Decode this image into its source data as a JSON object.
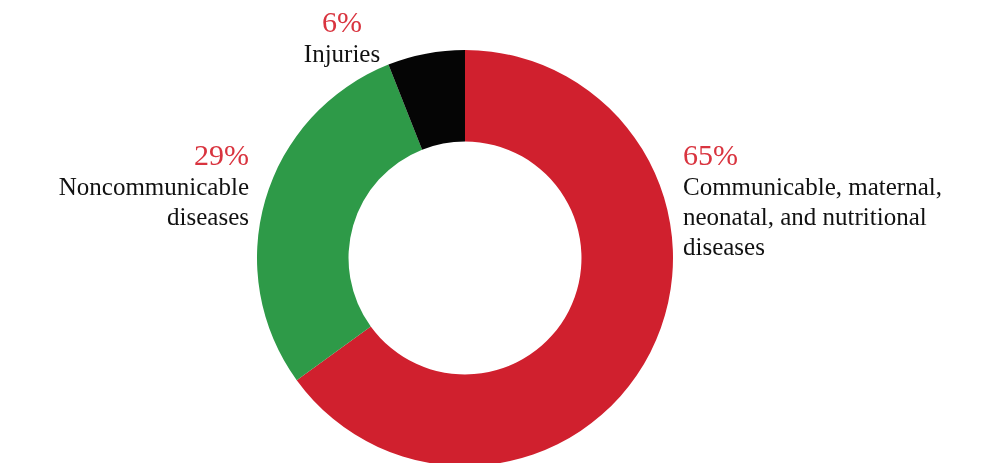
{
  "chart_data": {
    "type": "donut",
    "categories": [
      "Communicable, maternal, neonatal, and nutritional diseases",
      "Noncommunicable diseases",
      "Injuries"
    ],
    "values": [
      65,
      29,
      6
    ],
    "value_labels": [
      "65%",
      "29%",
      "6%"
    ],
    "colors": [
      "#d0202e",
      "#2e9a48",
      "#050505"
    ],
    "legend": false
  }
}
